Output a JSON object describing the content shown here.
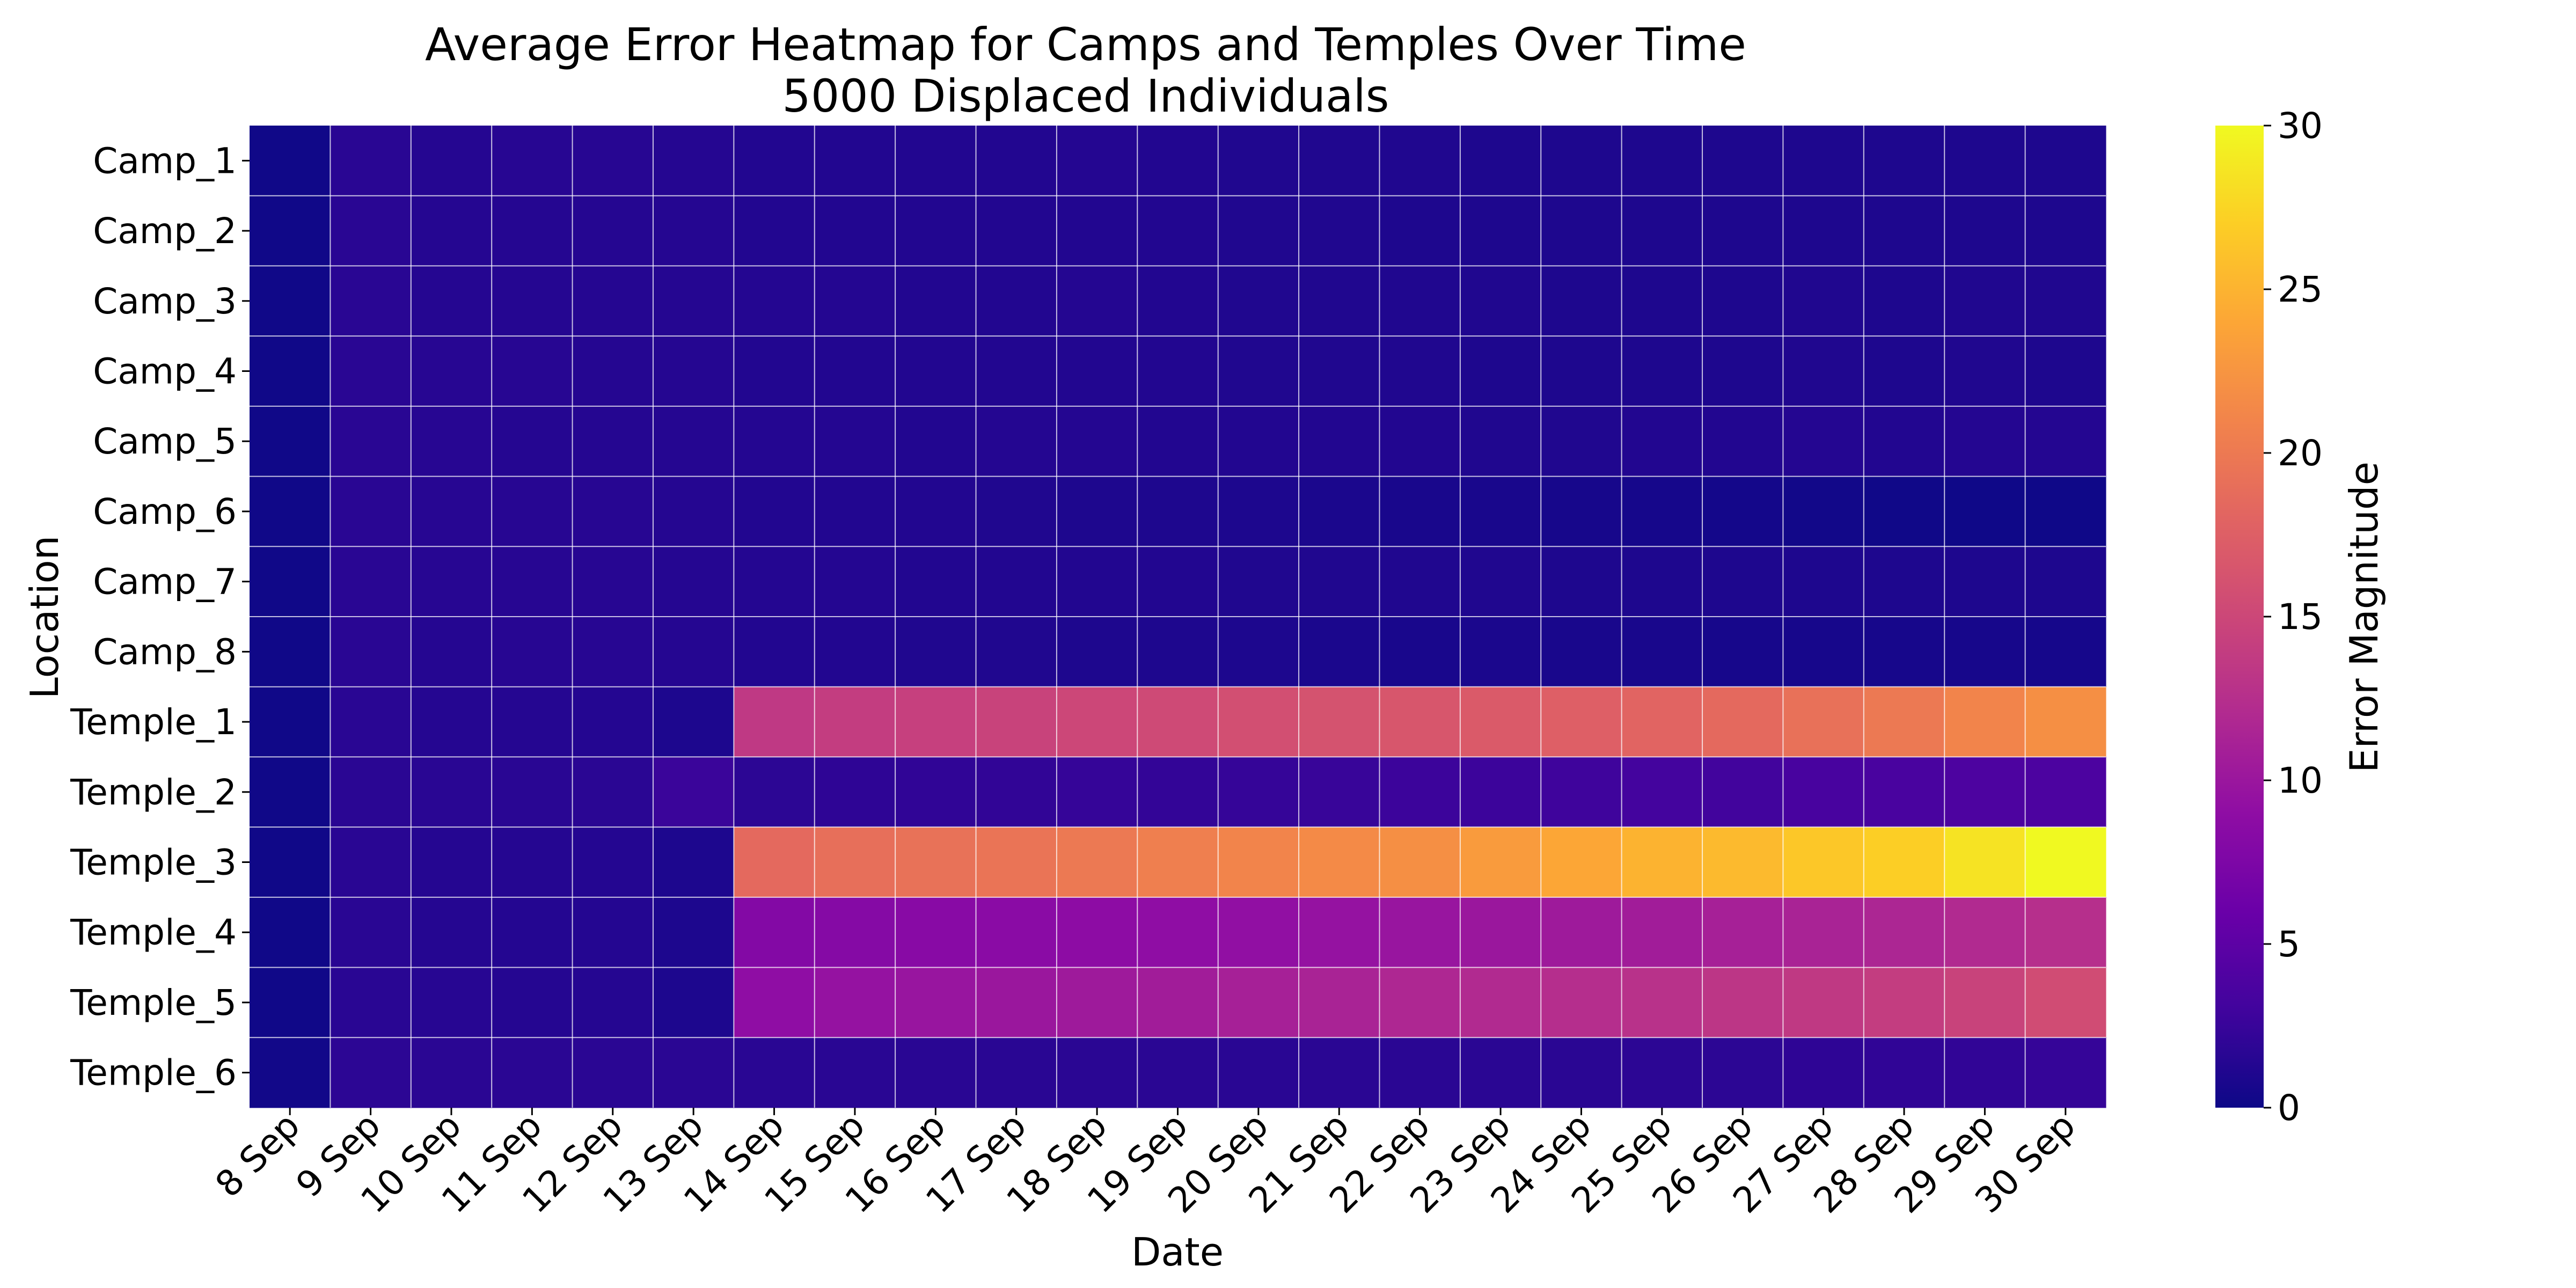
{
  "chart_data": {
    "type": "heatmap",
    "title": "Average Error Heatmap for Camps and Temples Over Time",
    "subtitle": "5000 Displaced Individuals",
    "xlabel": "Date",
    "ylabel": "Location",
    "colorbar_label": "Error Magnitude",
    "colormap": "plasma",
    "color_range": [
      0,
      30
    ],
    "colorbar_ticks": [
      "0",
      "5",
      "10",
      "15",
      "20",
      "25",
      "30"
    ],
    "x": [
      "8 Sep",
      "9 Sep",
      "10 Sep",
      "11 Sep",
      "12 Sep",
      "13 Sep",
      "14 Sep",
      "15 Sep",
      "16 Sep",
      "17 Sep",
      "18 Sep",
      "19 Sep",
      "20 Sep",
      "21 Sep",
      "22 Sep",
      "23 Sep",
      "24 Sep",
      "25 Sep",
      "26 Sep",
      "27 Sep",
      "28 Sep",
      "29 Sep",
      "30 Sep"
    ],
    "y": [
      "Camp_1",
      "Camp_2",
      "Camp_3",
      "Camp_4",
      "Camp_5",
      "Camp_6",
      "Camp_7",
      "Camp_8",
      "Temple_1",
      "Temple_2",
      "Temple_3",
      "Temple_4",
      "Temple_5",
      "Temple_6"
    ],
    "values": [
      [
        0.2,
        1.6,
        1.4,
        1.5,
        1.5,
        1.4,
        1.2,
        1.2,
        1.2,
        1.2,
        1.3,
        1.2,
        1.1,
        1.1,
        1.1,
        1.0,
        1.0,
        1.0,
        1.0,
        1.0,
        1.0,
        1.0,
        1.0
      ],
      [
        0.2,
        1.6,
        1.4,
        1.4,
        1.4,
        1.4,
        1.2,
        1.2,
        1.2,
        1.2,
        1.2,
        1.2,
        1.1,
        1.1,
        1.0,
        1.0,
        1.0,
        1.0,
        1.0,
        1.0,
        1.0,
        1.0,
        1.0
      ],
      [
        0.2,
        1.6,
        1.4,
        1.4,
        1.4,
        1.4,
        1.3,
        1.3,
        1.2,
        1.2,
        1.3,
        1.2,
        1.1,
        1.1,
        1.1,
        1.1,
        1.0,
        1.0,
        1.0,
        1.1,
        1.0,
        1.1,
        1.1
      ],
      [
        0.2,
        1.6,
        1.5,
        1.5,
        1.4,
        1.4,
        1.2,
        1.2,
        1.2,
        1.2,
        1.2,
        1.2,
        1.1,
        1.1,
        1.1,
        1.0,
        1.0,
        1.0,
        1.0,
        1.1,
        1.0,
        1.1,
        1.0
      ],
      [
        0.2,
        1.6,
        1.5,
        1.4,
        1.4,
        1.4,
        1.3,
        1.3,
        1.2,
        1.3,
        1.3,
        1.2,
        1.2,
        1.2,
        1.2,
        1.1,
        1.1,
        1.2,
        1.2,
        1.3,
        1.2,
        1.3,
        1.3
      ],
      [
        0.2,
        1.6,
        1.5,
        1.5,
        1.5,
        1.4,
        1.2,
        1.2,
        1.2,
        1.1,
        1.0,
        1.0,
        0.9,
        0.8,
        0.7,
        0.7,
        0.6,
        0.5,
        0.4,
        0.3,
        0.2,
        0.1,
        0.1
      ],
      [
        0.2,
        1.6,
        1.5,
        1.5,
        1.5,
        1.4,
        1.3,
        1.3,
        1.2,
        1.2,
        1.2,
        1.2,
        1.1,
        1.1,
        1.1,
        1.1,
        1.0,
        1.0,
        1.0,
        1.0,
        1.0,
        1.0,
        1.0
      ],
      [
        0.2,
        1.6,
        1.4,
        1.5,
        1.5,
        1.4,
        1.2,
        1.2,
        1.1,
        1.1,
        1.0,
        1.0,
        0.9,
        0.8,
        0.7,
        0.8,
        0.7,
        0.7,
        0.6,
        0.6,
        0.6,
        0.6,
        0.5
      ],
      [
        0.2,
        1.6,
        1.4,
        1.4,
        1.3,
        0.9,
        13.5,
        14.0,
        14.3,
        14.6,
        15.0,
        15.3,
        15.8,
        16.2,
        16.6,
        17.0,
        17.5,
        18.0,
        18.5,
        19.2,
        20.0,
        21.0,
        22.0
      ],
      [
        0.2,
        1.7,
        1.6,
        1.6,
        1.7,
        2.6,
        1.8,
        1.9,
        2.0,
        2.1,
        2.3,
        2.2,
        2.3,
        2.5,
        2.7,
        2.7,
        2.9,
        3.2,
        3.1,
        3.5,
        3.6,
        3.9,
        3.8
      ],
      [
        0.2,
        1.6,
        1.4,
        1.4,
        1.3,
        0.9,
        18.5,
        19.0,
        19.3,
        19.5,
        20.0,
        20.5,
        21.0,
        21.5,
        22.0,
        23.0,
        24.0,
        25.0,
        25.5,
        26.5,
        27.0,
        28.5,
        30.0
      ],
      [
        0.2,
        1.6,
        1.4,
        1.3,
        1.3,
        0.9,
        8.0,
        8.2,
        8.4,
        8.6,
        8.8,
        9.0,
        9.2,
        9.5,
        9.8,
        10.0,
        10.3,
        10.6,
        11.0,
        11.3,
        11.6,
        12.0,
        12.5
      ],
      [
        0.2,
        1.6,
        1.5,
        1.4,
        1.4,
        0.9,
        9.0,
        9.5,
        9.8,
        10.0,
        10.3,
        10.6,
        11.0,
        11.3,
        11.7,
        12.0,
        12.4,
        12.8,
        13.2,
        13.6,
        14.0,
        14.6,
        15.5
      ],
      [
        0.3,
        1.8,
        1.7,
        1.7,
        1.7,
        1.7,
        1.6,
        1.6,
        1.6,
        1.6,
        1.7,
        1.7,
        1.6,
        1.7,
        1.7,
        1.7,
        1.7,
        1.8,
        1.8,
        1.9,
        2.0,
        2.1,
        2.3
      ]
    ]
  }
}
